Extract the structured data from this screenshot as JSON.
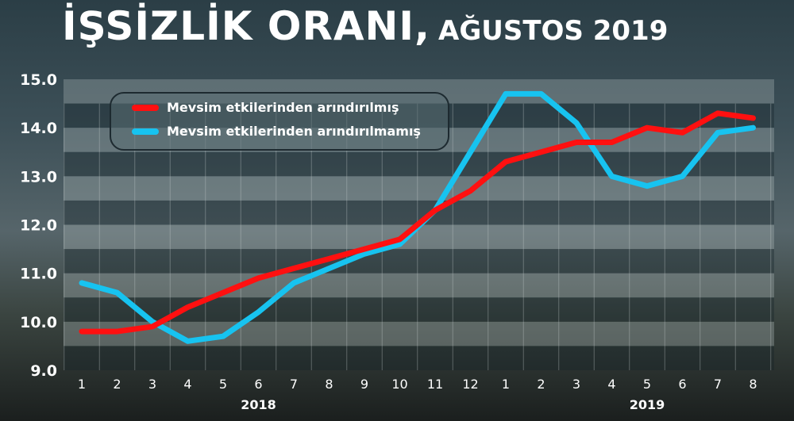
{
  "title": {
    "main": "İŞSİZLİK ORANI,",
    "sub": "AĞUSTOS 2019"
  },
  "chart_data": {
    "type": "line",
    "title": "İŞSİZLİK ORANI, AĞUSTOS 2019",
    "x": [
      "1",
      "2",
      "3",
      "4",
      "5",
      "6",
      "7",
      "8",
      "9",
      "10",
      "11",
      "12",
      "1",
      "2",
      "3",
      "4",
      "5",
      "6",
      "7",
      "8"
    ],
    "year_labels": [
      {
        "label": "2018",
        "at": "6"
      },
      {
        "label": "2019",
        "at": "5"
      }
    ],
    "ylim": [
      9.0,
      15.0
    ],
    "yticks": [
      "9.0",
      "10.0",
      "11.0",
      "12.0",
      "13.0",
      "14.0",
      "15.0"
    ],
    "grid": true,
    "legend_position": "top-left",
    "series": [
      {
        "name": "Mevsim etkilerinden arındırılmış",
        "color": "#ff1010",
        "values": [
          9.8,
          9.8,
          9.9,
          10.3,
          10.6,
          10.9,
          11.1,
          11.3,
          11.5,
          11.7,
          12.3,
          12.7,
          13.3,
          13.5,
          13.7,
          13.7,
          14.0,
          13.9,
          14.3,
          14.2
        ]
      },
      {
        "name": "Mevsim etkilerinden arındırılmamış",
        "color": "#17c3f0",
        "values": [
          10.8,
          10.6,
          10.0,
          9.6,
          9.7,
          10.2,
          10.8,
          11.1,
          11.4,
          11.6,
          12.3,
          13.5,
          14.7,
          14.7,
          14.1,
          13.0,
          12.8,
          13.0,
          13.9,
          14.0
        ]
      }
    ]
  }
}
